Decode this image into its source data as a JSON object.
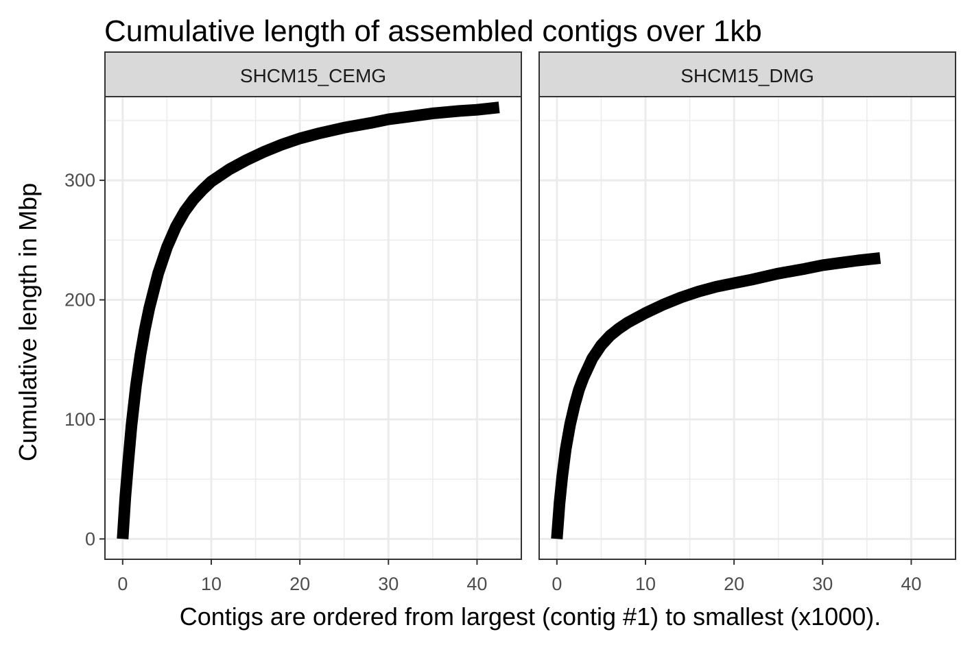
{
  "chart_data": {
    "type": "line",
    "title": "Cumulative length of assembled contigs over 1kb",
    "xlabel": "Contigs are ordered from largest (contig #1) to smallest (x1000).",
    "ylabel": "Cumulative length in Mbp",
    "xlim": [
      -2,
      45
    ],
    "ylim": [
      -17,
      370
    ],
    "x_ticks": [
      0,
      10,
      20,
      30,
      40
    ],
    "y_ticks": [
      0,
      100,
      200,
      300
    ],
    "grid": true,
    "colors": {
      "line": "#000000",
      "strip_fill": "#d9d9d9",
      "grid": "#ebebeb",
      "border": "#333333"
    },
    "panels": [
      {
        "name": "SHCM15_CEMG",
        "x": [
          0,
          0.3,
          0.6,
          1,
          1.5,
          2,
          2.5,
          3,
          4,
          5,
          6,
          7,
          8,
          9,
          10,
          12,
          14,
          16,
          18,
          20,
          22,
          25,
          28,
          30,
          32,
          35,
          38,
          40,
          42.5
        ],
        "y": [
          0,
          35,
          62,
          95,
          128,
          154,
          175,
          193,
          222,
          244,
          261,
          274,
          284,
          292,
          299,
          309,
          317,
          324,
          330,
          335,
          339,
          344,
          348,
          351,
          353,
          356,
          358,
          359,
          361
        ]
      },
      {
        "name": "SHCM15_DMG",
        "x": [
          0,
          0.3,
          0.6,
          1,
          1.5,
          2,
          2.5,
          3,
          4,
          5,
          6,
          7,
          8,
          10,
          12,
          14,
          16,
          18,
          20,
          22,
          25,
          28,
          30,
          32,
          34,
          36.5
        ],
        "y": [
          0,
          30,
          52,
          75,
          96,
          112,
          125,
          135,
          151,
          162,
          170,
          176,
          181,
          189,
          196,
          202,
          207,
          211,
          214,
          217,
          222,
          226,
          229,
          231,
          233,
          235
        ]
      }
    ]
  }
}
